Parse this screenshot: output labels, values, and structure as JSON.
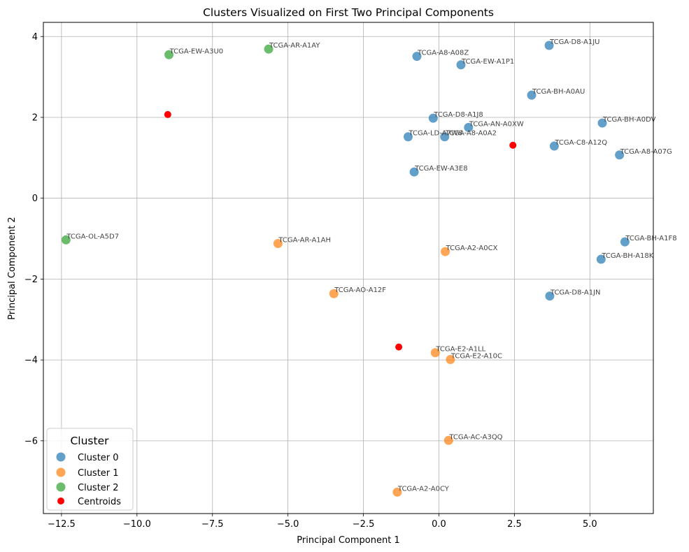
{
  "chart_data": {
    "type": "scatter",
    "title": "Clusters Visualized on First Two Principal Components",
    "xlabel": "Principal Component 1",
    "ylabel": "Principal Component 2",
    "xlim": [
      -13.1,
      7.1
    ],
    "ylim": [
      -7.8,
      4.35
    ],
    "xticks": [
      -12.5,
      -10.0,
      -7.5,
      -5.0,
      -2.5,
      0.0,
      2.5,
      5.0
    ],
    "xtick_labels": [
      "−12.5",
      "−10.0",
      "−7.5",
      "−5.0",
      "−2.5",
      "0.0",
      "2.5",
      "5.0"
    ],
    "yticks": [
      -6,
      -4,
      -2,
      0,
      2,
      4
    ],
    "ytick_labels": [
      "−6",
      "−4",
      "−2",
      "0",
      "2",
      "4"
    ],
    "grid": true,
    "legend": {
      "title": "Cluster",
      "position": "lower-left",
      "entries": [
        "Cluster 0",
        "Cluster 1",
        "Cluster 2",
        "Centroids"
      ]
    },
    "series": [
      {
        "name": "Cluster 0",
        "color": "#1f77b4",
        "points": [
          {
            "label": "TCGA-D8-A1JU",
            "x": 3.65,
            "y": 3.78
          },
          {
            "label": "TCGA-A8-A08Z",
            "x": -0.73,
            "y": 3.51
          },
          {
            "label": "TCGA-EW-A1P1",
            "x": 0.73,
            "y": 3.3
          },
          {
            "label": "TCGA-BH-A0AU",
            "x": 3.07,
            "y": 2.55
          },
          {
            "label": "TCGA-D8-A1J8",
            "x": -0.19,
            "y": 1.98
          },
          {
            "label": "TCGA-BH-A0DV",
            "x": 5.41,
            "y": 1.86
          },
          {
            "label": "TCGA-AN-A0XW",
            "x": 0.98,
            "y": 1.75
          },
          {
            "label": "TCGA-LD-A7W6",
            "x": -1.02,
            "y": 1.52
          },
          {
            "label": "TCGA-A8-A0A2",
            "x": 0.19,
            "y": 1.52
          },
          {
            "label": "TCGA-C8-A12Q",
            "x": 3.82,
            "y": 1.29
          },
          {
            "label": "TCGA-A8-A07G",
            "x": 5.98,
            "y": 1.07
          },
          {
            "label": "TCGA-EW-A3E8",
            "x": -0.82,
            "y": 0.65
          },
          {
            "label": "TCGA-BH-A1F8",
            "x": 6.16,
            "y": -1.08
          },
          {
            "label": "TCGA-BH-A18K",
            "x": 5.37,
            "y": -1.51
          },
          {
            "label": "TCGA-D8-A1JN",
            "x": 3.67,
            "y": -2.42
          }
        ]
      },
      {
        "name": "Cluster 1",
        "color": "#ff7f0e",
        "points": [
          {
            "label": "TCGA-AR-A1AH",
            "x": -5.33,
            "y": -1.12
          },
          {
            "label": "TCGA-A2-A0CX",
            "x": 0.21,
            "y": -1.32
          },
          {
            "label": "TCGA-AO-A12F",
            "x": -3.48,
            "y": -2.36
          },
          {
            "label": "TCGA-E2-A1LL",
            "x": -0.12,
            "y": -3.82
          },
          {
            "label": "TCGA-E2-A10C",
            "x": 0.38,
            "y": -3.99
          },
          {
            "label": "TCGA-AC-A3QQ",
            "x": 0.32,
            "y": -5.99
          },
          {
            "label": "TCGA-A2-A0CY",
            "x": -1.38,
            "y": -7.27
          }
        ]
      },
      {
        "name": "Cluster 2",
        "color": "#2ca02c",
        "points": [
          {
            "label": "TCGA-EW-A3U0",
            "x": -8.94,
            "y": 3.55
          },
          {
            "label": "TCGA-AR-A1AY",
            "x": -5.64,
            "y": 3.69
          },
          {
            "label": "TCGA-OL-A5D7",
            "x": -12.35,
            "y": -1.03
          }
        ]
      }
    ],
    "centroids": {
      "name": "Centroids",
      "color": "#ff0000",
      "points": [
        {
          "x": -8.98,
          "y": 2.07
        },
        {
          "x": 2.45,
          "y": 1.31
        },
        {
          "x": -1.33,
          "y": -3.68
        }
      ]
    }
  }
}
